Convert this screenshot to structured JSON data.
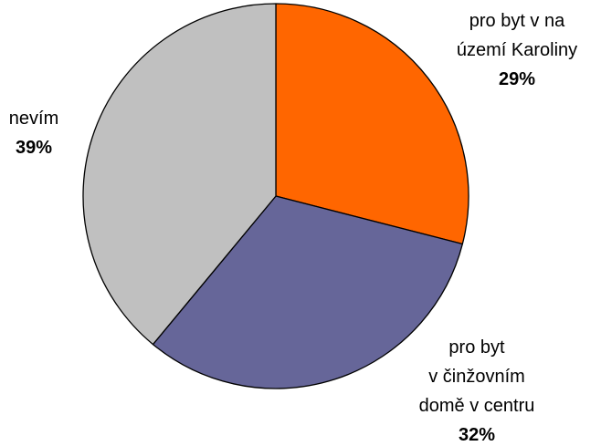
{
  "chart_data": {
    "type": "pie",
    "title": "",
    "start_angle_deg": 0,
    "direction": "clockwise",
    "slices": [
      {
        "label_lines": [
          "pro byt v na",
          "území Karoliny"
        ],
        "value": 29,
        "value_label": "29%",
        "color": "#FF6600"
      },
      {
        "label_lines": [
          "pro byt",
          "v činžovním",
          "domě v centru"
        ],
        "value": 32,
        "value_label": "32%",
        "color": "#666699"
      },
      {
        "label_lines": [
          "nevím"
        ],
        "value": 39,
        "value_label": "39%",
        "color": "#C0C0C0"
      }
    ]
  }
}
